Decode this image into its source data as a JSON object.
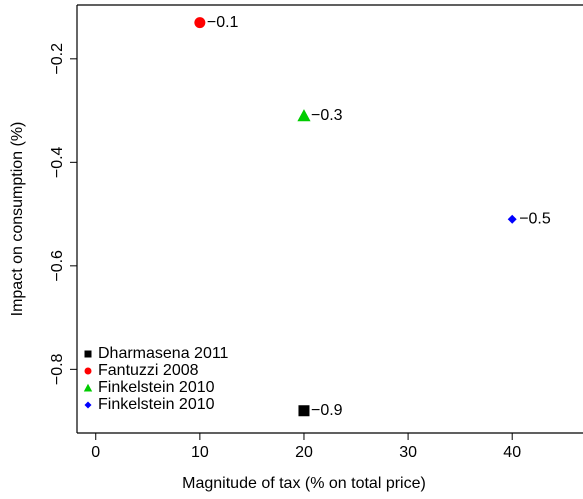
{
  "chart_data": {
    "type": "scatter",
    "x_label": "Magnitude of tax (% on total price)",
    "y_label": "Impact on consumption (%)",
    "xlim": [
      -1.8,
      46.8
    ],
    "xticks": [
      0,
      10,
      20,
      30,
      40
    ],
    "ylim": [
      -0.923,
      -0.096
    ],
    "yticks": [
      {
        "value": -0.2,
        "label": "−0.2"
      },
      {
        "value": -0.4,
        "label": "−0.4"
      },
      {
        "value": -0.6,
        "label": "−0.6"
      },
      {
        "value": -0.8,
        "label": "−0.8"
      }
    ],
    "legend": "bottom-left",
    "series": [
      {
        "name": "Dharmasena 2011",
        "color": "#000000",
        "marker": "square",
        "x": [
          20
        ],
        "values": [
          -0.88
        ],
        "value_labels": [
          "−0.9"
        ]
      },
      {
        "name": "Fantuzzi 2008",
        "color": "#ff0000",
        "marker": "circle",
        "x": [
          10
        ],
        "values": [
          -0.13
        ],
        "value_labels": [
          "−0.1"
        ]
      },
      {
        "name": "Finkelstein 2010",
        "color": "#00cc00",
        "marker": "triangle",
        "x": [
          20
        ],
        "values": [
          -0.31
        ],
        "value_labels": [
          "−0.3"
        ]
      },
      {
        "name": "Finkelstein 2010",
        "color": "#0000ff",
        "marker": "diamond",
        "x": [
          40
        ],
        "values": [
          -0.51
        ],
        "value_labels": [
          "−0.5"
        ]
      }
    ]
  }
}
